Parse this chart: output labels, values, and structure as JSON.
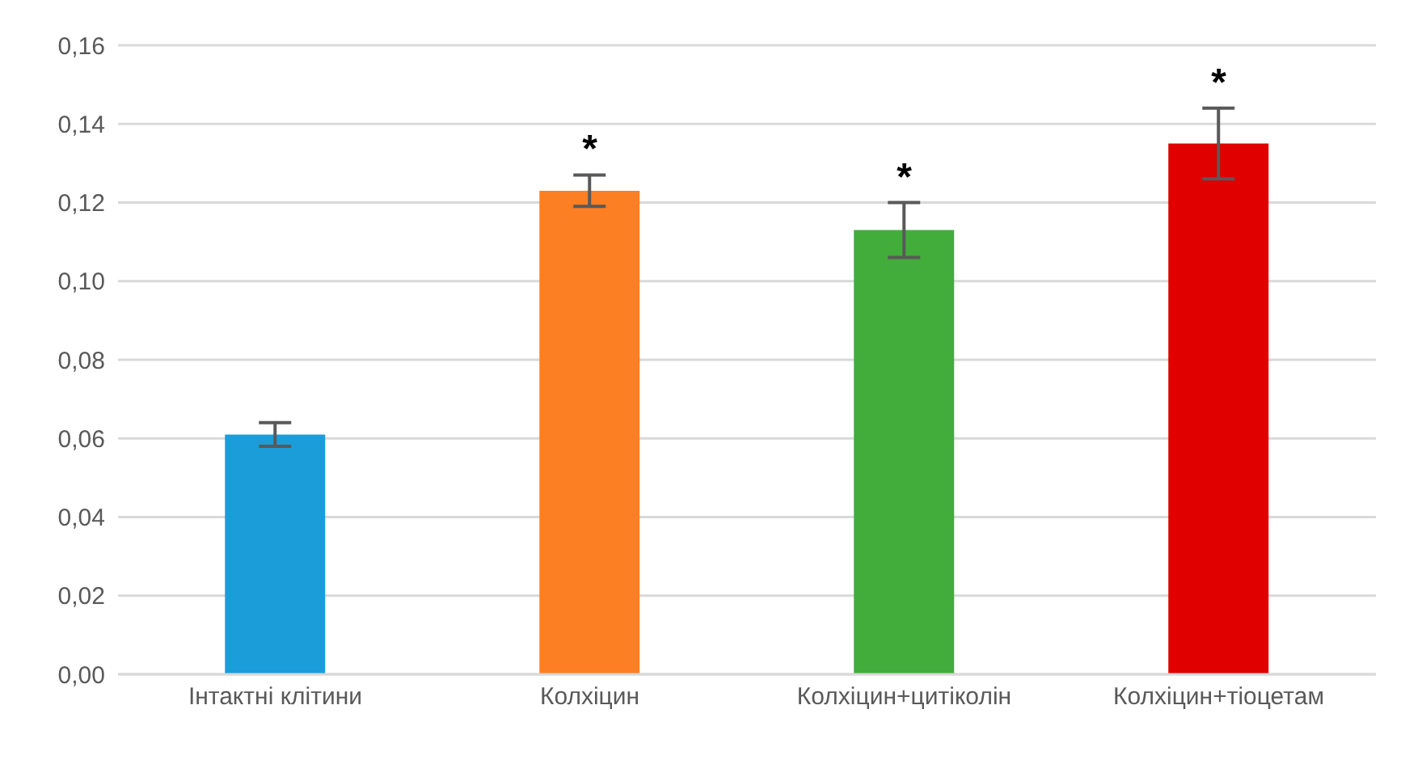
{
  "chart_data": {
    "type": "bar",
    "categories": [
      "Інтактні клітини",
      "Колхіцин",
      "Колхіцин+цитіколін",
      "Колхіцин+тіоцетам"
    ],
    "values": [
      0.061,
      0.123,
      0.113,
      0.135
    ],
    "colors": [
      "#1b9dd9",
      "#fd7f23",
      "#42ad3a",
      "#e00000"
    ],
    "errors": [
      0.003,
      0.004,
      0.007,
      0.009
    ],
    "ylim": [
      0,
      0.16
    ],
    "yticks": [
      {
        "value": 0,
        "label": "0,00"
      },
      {
        "value": 0.02,
        "label": "0,02"
      },
      {
        "value": 0.04,
        "label": "0,04"
      },
      {
        "value": 0.06,
        "label": "0,06"
      },
      {
        "value": 0.08,
        "label": "0,08"
      },
      {
        "value": 0.1,
        "label": "0,10"
      },
      {
        "value": 0.12,
        "label": "0,12"
      },
      {
        "value": 0.14,
        "label": "0,14"
      },
      {
        "value": 0.16,
        "label": "0,16"
      }
    ],
    "grid": "y",
    "legend": false,
    "annotations": [
      {
        "text": "*",
        "x": "Колхіцин",
        "y": 0.123
      },
      {
        "text": "*",
        "x": "Колхіцин+цитіколін",
        "y": 0.113
      },
      {
        "text": "*",
        "x": "Колхіцин+тіоцетам",
        "y": 0.135
      }
    ]
  }
}
